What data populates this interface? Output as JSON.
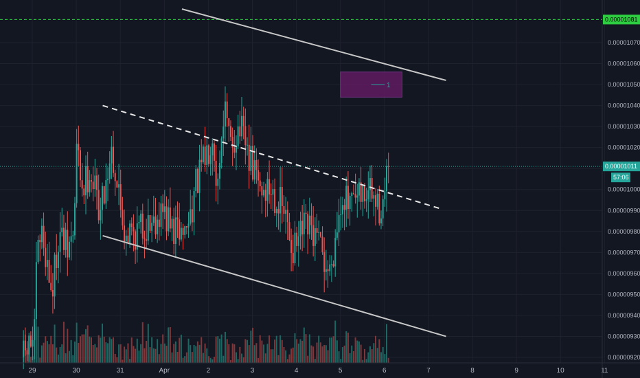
{
  "chart_data": {
    "type": "candlestick",
    "grid": true,
    "colors": {
      "background": "#131722",
      "grid": "#1e222d",
      "up": "#26a69a",
      "down": "#ef5350",
      "volume_up": "#1f6f69",
      "volume_down": "#8e3a3c",
      "trendline": "#c8c8c8",
      "dashed_trendline": "#e8e8e8",
      "alert_line": "#2ecc40",
      "last_price_line": "#26a69a",
      "rectangle": "#6a1b6a",
      "rectangle_line": "#26a69a"
    },
    "y_axis": {
      "min": 9.2e-06,
      "max": 1.08e-05,
      "ticks": [
        "0.00000920",
        "0.00000930",
        "0.00000940",
        "0.00000950",
        "0.00000960",
        "0.00000970",
        "0.00000980",
        "0.00000990",
        "0.00001000",
        "0.00001010",
        "0.00001020",
        "0.00001030",
        "0.00001040",
        "0.00001050",
        "0.00001060",
        "0.00001070"
      ]
    },
    "x_axis": {
      "ticks": [
        {
          "label": "29",
          "t": 0
        },
        {
          "label": "30",
          "t": 1
        },
        {
          "label": "31",
          "t": 2
        },
        {
          "label": "Apr",
          "t": 3
        },
        {
          "label": "2",
          "t": 4
        },
        {
          "label": "3",
          "t": 5
        },
        {
          "label": "4",
          "t": 6
        },
        {
          "label": "5",
          "t": 7
        },
        {
          "label": "6",
          "t": 8
        },
        {
          "label": "7",
          "t": 9
        },
        {
          "label": "8",
          "t": 10
        },
        {
          "label": "9",
          "t": 11
        },
        {
          "label": "10",
          "t": 12
        },
        {
          "label": "11",
          "t": 13
        }
      ],
      "range": [
        -0.2,
        13.1
      ]
    },
    "price_path": [
      [
        -0.2,
        9.2e-06
      ],
      [
        0.05,
        9.3e-06
      ],
      [
        0.1,
        9.65e-06
      ],
      [
        0.2,
        9.8e-06
      ],
      [
        0.3,
        9.7e-06
      ],
      [
        0.45,
        9.5e-06
      ],
      [
        0.6,
        9.8e-06
      ],
      [
        0.8,
        9.7e-06
      ],
      [
        0.95,
        9.8e-06
      ],
      [
        1.0,
        1.02e-05
      ],
      [
        1.15,
        1e-05
      ],
      [
        1.3,
        1.01e-05
      ],
      [
        1.55,
        9.9e-06
      ],
      [
        1.8,
        1.02e-05
      ],
      [
        1.95,
        1e-05
      ],
      [
        2.1,
        9.8e-06
      ],
      [
        2.4,
        9.8e-06
      ],
      [
        2.7,
        9.85e-06
      ],
      [
        2.95,
        9.9e-06
      ],
      [
        3.2,
        9.8e-06
      ],
      [
        3.5,
        9.8e-06
      ],
      [
        3.7,
        1e-05
      ],
      [
        3.85,
        1.01e-05
      ],
      [
        4.0,
        1.02e-05
      ],
      [
        4.1,
        1.03e-05
      ],
      [
        4.2,
        1e-05
      ],
      [
        4.35,
        1.04e-05
      ],
      [
        4.5,
        1.02e-05
      ],
      [
        4.7,
        1.03e-05
      ],
      [
        4.85,
        1.02e-05
      ],
      [
        5.0,
        1.01e-05
      ],
      [
        5.2,
        1e-05
      ],
      [
        5.45,
        1e-05
      ],
      [
        5.7,
        9.9e-06
      ],
      [
        5.95,
        9.7e-06
      ],
      [
        6.15,
        9.8e-06
      ],
      [
        6.35,
        9.8e-06
      ],
      [
        6.55,
        9.7e-06
      ],
      [
        6.75,
        9.6e-06
      ],
      [
        6.9,
        9.8e-06
      ],
      [
        7.05,
        1e-05
      ],
      [
        7.2,
        9.9e-06
      ],
      [
        7.45,
        9.95e-06
      ],
      [
        7.65,
        1e-05
      ],
      [
        7.85,
        9.9e-06
      ],
      [
        8.0,
        9.95e-06
      ],
      [
        8.1,
        1.011e-05
      ]
    ],
    "alert_level": {
      "value": 1.081e-05,
      "label": "0.00001081"
    },
    "last_price": {
      "value": 1.011e-05,
      "label": "0.00001011",
      "countdown": "57:06"
    },
    "rectangle": {
      "t1": 7.0,
      "t2": 8.4,
      "y1": 1.044e-05,
      "y2": 1.056e-05,
      "label": "1"
    },
    "trendlines": [
      {
        "t1": 3.4,
        "y1": 1.086e-05,
        "t2": 9.4,
        "y2": 1.052e-05,
        "style": "solid"
      },
      {
        "t1": 1.6,
        "y1": 1.04e-05,
        "t2": 9.25,
        "y2": 9.91e-06,
        "style": "dashed"
      },
      {
        "t1": 1.6,
        "y1": 9.78e-06,
        "t2": 9.4,
        "y2": 9.3e-06,
        "style": "solid"
      }
    ]
  }
}
